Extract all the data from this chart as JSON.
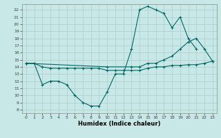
{
  "xlabel": "Humidex (Indice chaleur)",
  "bg_color": "#c8e8e8",
  "line_color": "#006660",
  "grid_color": "#a8cece",
  "xlim": [
    -0.5,
    23.5
  ],
  "ylim": [
    7.5,
    22.8
  ],
  "xticks": [
    0,
    1,
    2,
    3,
    4,
    5,
    6,
    7,
    8,
    9,
    10,
    11,
    12,
    13,
    14,
    15,
    16,
    17,
    18,
    19,
    20,
    21,
    22,
    23
  ],
  "yticks": [
    8,
    9,
    10,
    11,
    12,
    13,
    14,
    15,
    16,
    17,
    18,
    19,
    20,
    21,
    22
  ],
  "line1_x": [
    0,
    1,
    2,
    3,
    4,
    5,
    6,
    7,
    8,
    9,
    10,
    11,
    12,
    13,
    14,
    15,
    16,
    17,
    18,
    19,
    20,
    21
  ],
  "line1_y": [
    14.5,
    14.5,
    11.5,
    12.0,
    12.0,
    11.5,
    10.0,
    9.0,
    8.5,
    8.5,
    10.5,
    13.0,
    13.0,
    16.5,
    22.0,
    22.5,
    22.0,
    21.5,
    19.5,
    21.0,
    18.0,
    16.5
  ],
  "line2_x": [
    0,
    10,
    13,
    14,
    15,
    16,
    17,
    18,
    19,
    20,
    21,
    22,
    23
  ],
  "line2_y": [
    14.5,
    14.0,
    14.0,
    14.0,
    14.5,
    14.5,
    15.0,
    15.5,
    16.5,
    17.5,
    18.0,
    16.5,
    14.8
  ],
  "line3_x": [
    0,
    1,
    2,
    3,
    4,
    5,
    6,
    7,
    8,
    9,
    10,
    11,
    12,
    13,
    14,
    15,
    16,
    17,
    18,
    19,
    20,
    21,
    22,
    23
  ],
  "line3_y": [
    14.5,
    14.5,
    14.0,
    13.8,
    13.8,
    13.8,
    13.8,
    13.8,
    13.8,
    13.8,
    13.5,
    13.5,
    13.5,
    13.5,
    13.5,
    13.8,
    14.0,
    14.0,
    14.2,
    14.2,
    14.3,
    14.3,
    14.5,
    14.8
  ]
}
